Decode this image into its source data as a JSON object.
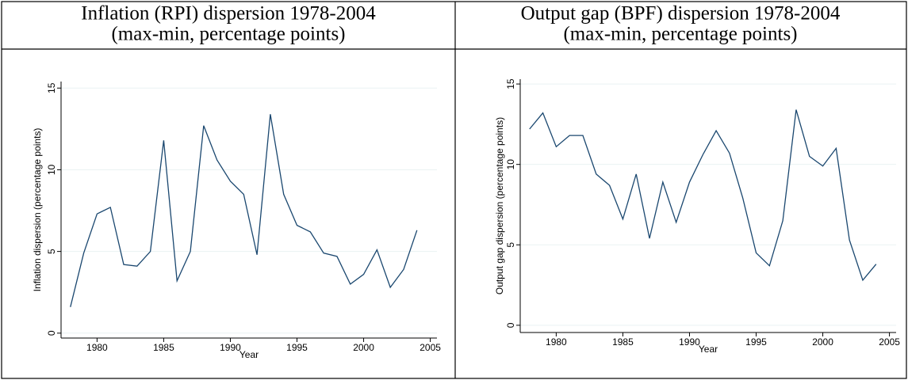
{
  "chart_data": [
    {
      "type": "line",
      "title": "Inflation (RPI) dispersion 1978-2004",
      "subtitle": "(max-min, percentage points)",
      "x_label": "Year",
      "y_label": "Inflation dispersion (percentage points)",
      "x": [
        1978,
        1979,
        1980,
        1981,
        1982,
        1983,
        1984,
        1985,
        1986,
        1987,
        1988,
        1989,
        1990,
        1991,
        1992,
        1993,
        1994,
        1995,
        1996,
        1997,
        1998,
        1999,
        2000,
        2001,
        2002,
        2003,
        2004
      ],
      "series": [
        {
          "color": "#1a476f",
          "values": [
            1.6,
            4.9,
            7.3,
            7.7,
            4.2,
            4.1,
            5.0,
            11.8,
            3.2,
            5.0,
            12.7,
            10.6,
            9.3,
            8.5,
            4.8,
            13.4,
            8.5,
            6.6,
            6.2,
            4.9,
            4.7,
            3.0,
            3.6,
            5.1,
            2.8,
            3.9,
            6.3
          ]
        }
      ],
      "xlim": [
        1977.3,
        2005.5
      ],
      "xticks": [
        1980,
        1985,
        1990,
        1995,
        2000,
        2005
      ],
      "ylim": [
        -0.3,
        15.4
      ],
      "yticks": [
        0,
        5,
        10,
        15
      ],
      "grid": true
    },
    {
      "type": "line",
      "title": "Output gap (BPF) dispersion 1978-2004",
      "subtitle": "(max-min, percentage points)",
      "x_label": "Year",
      "y_label": "Output gap dispersion (percentage points)",
      "x": [
        1978,
        1979,
        1980,
        1981,
        1982,
        1983,
        1984,
        1985,
        1986,
        1987,
        1988,
        1989,
        1990,
        1991,
        1992,
        1993,
        1994,
        1995,
        1996,
        1997,
        1998,
        1999,
        2000,
        2001,
        2002,
        2003,
        2004
      ],
      "series": [
        {
          "color": "#1a476f",
          "values": [
            12.2,
            13.2,
            11.1,
            11.8,
            11.8,
            9.4,
            8.7,
            6.6,
            9.4,
            5.4,
            8.9,
            6.4,
            8.9,
            10.6,
            12.1,
            10.7,
            7.9,
            4.5,
            3.7,
            6.5,
            13.4,
            10.5,
            9.9,
            11.0,
            5.3,
            2.8,
            3.8
          ]
        }
      ],
      "xlim": [
        1977.3,
        2005.5
      ],
      "xticks": [
        1980,
        1985,
        1990,
        1995,
        2000,
        2005
      ],
      "ylim": [
        -0.45,
        15.3
      ],
      "yticks": [
        0,
        5,
        10,
        15
      ],
      "grid": true
    }
  ]
}
